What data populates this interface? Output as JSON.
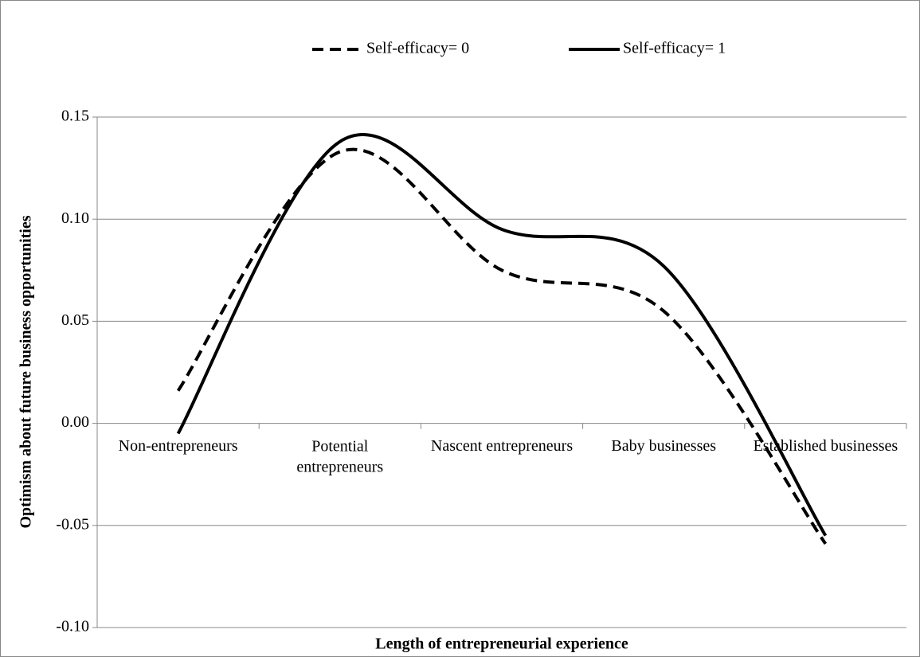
{
  "chart_data": {
    "type": "line",
    "x_label": "Length of entrepreneurial experience",
    "y_label": "Optimism about future business opportunities",
    "categories": [
      "Non-entrepreneurs",
      "Potential entrepreneurs",
      "Nascent entrepreneurs",
      "Baby businesses",
      "Established businesses"
    ],
    "series": [
      {
        "name": "Self-efficacy= 0",
        "color": "#000000",
        "dash": true,
        "values": [
          0.016,
          0.133,
          0.075,
          0.055,
          -0.059
        ]
      },
      {
        "name": "Self-efficacy= 1",
        "color": "#000000",
        "dash": false,
        "values": [
          -0.005,
          0.138,
          0.095,
          0.077,
          -0.055
        ]
      }
    ],
    "ylim": [
      -0.1,
      0.15
    ],
    "yticks": [
      {
        "value": -0.1,
        "label": "-0.10"
      },
      -0.05,
      {
        "value": 0,
        "label": "0.00"
      },
      0.05,
      {
        "value": 0.1,
        "label": "0.10"
      },
      0.15
    ],
    "grid": true,
    "legend": "top"
  }
}
